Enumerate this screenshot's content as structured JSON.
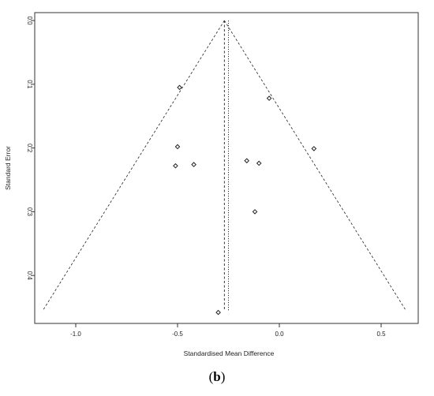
{
  "chart_data": {
    "type": "scatter",
    "xlabel": "Standardised Mean Difference",
    "ylabel": "Standard Error",
    "xlim": [
      -1.18,
      0.64
    ],
    "ylim": [
      0.0,
      0.47
    ],
    "y_inverted": true,
    "x_ticks": [
      -1.0,
      -0.5,
      0.0,
      0.5
    ],
    "x_tick_labels": [
      "-1.0",
      "-0.5",
      "0.0",
      "0.5"
    ],
    "y_ticks": [
      0.0,
      0.1,
      0.2,
      0.3,
      0.4
    ],
    "y_tick_labels": [
      "0.0",
      "0.1",
      "0.2",
      "0.3",
      "0.4"
    ],
    "grid": false,
    "legend": "none",
    "points": [
      {
        "x": -0.49,
        "y": 0.105
      },
      {
        "x": -0.05,
        "y": 0.122
      },
      {
        "x": 0.17,
        "y": 0.201
      },
      {
        "x": -0.5,
        "y": 0.198
      },
      {
        "x": -0.51,
        "y": 0.228
      },
      {
        "x": -0.42,
        "y": 0.226
      },
      {
        "x": -0.16,
        "y": 0.22
      },
      {
        "x": -0.1,
        "y": 0.224
      },
      {
        "x": -0.12,
        "y": 0.3
      },
      {
        "x": -0.3,
        "y": 0.458
      }
    ],
    "funnel": {
      "center": -0.27,
      "se_max": 0.455,
      "z": 1.96
    },
    "reference_lines": [
      {
        "style": "dashed",
        "x": -0.27
      },
      {
        "style": "dotted",
        "x": -0.25
      }
    ],
    "colors": {
      "points": "#222222",
      "lines": "#222222",
      "frame": "#333333"
    }
  },
  "panel_label": "(b)"
}
